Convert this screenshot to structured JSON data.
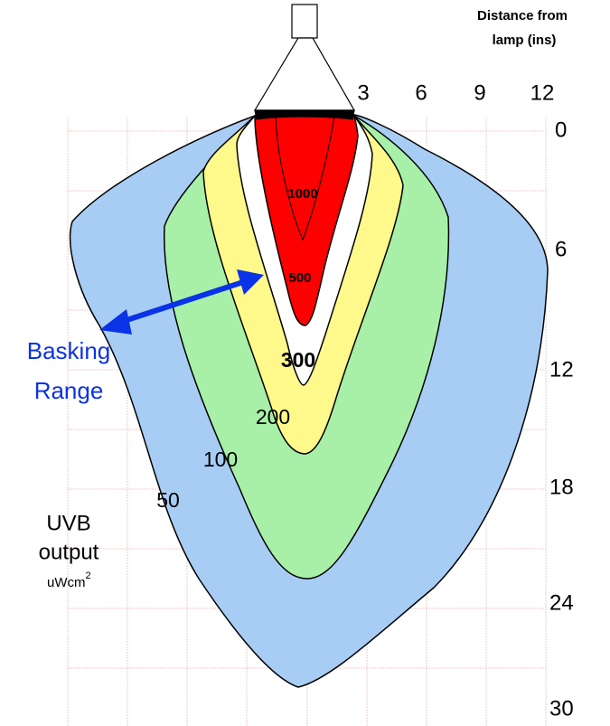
{
  "axis_title": {
    "lines": [
      "Distance from",
      "lamp (ins)"
    ]
  },
  "top_ticks": [
    "3",
    "6",
    "9",
    "12"
  ],
  "right_ticks": [
    "0",
    "6",
    "12",
    "18",
    "24",
    "30"
  ],
  "contour_labels": [
    "1000",
    "500",
    "300",
    "200",
    "100",
    "50"
  ],
  "callout": {
    "lines": [
      "Basking",
      "Range"
    ]
  },
  "legend": {
    "lines": [
      "UVB",
      "output"
    ],
    "unit": "uWcm",
    "unit_sup": "2"
  }
}
